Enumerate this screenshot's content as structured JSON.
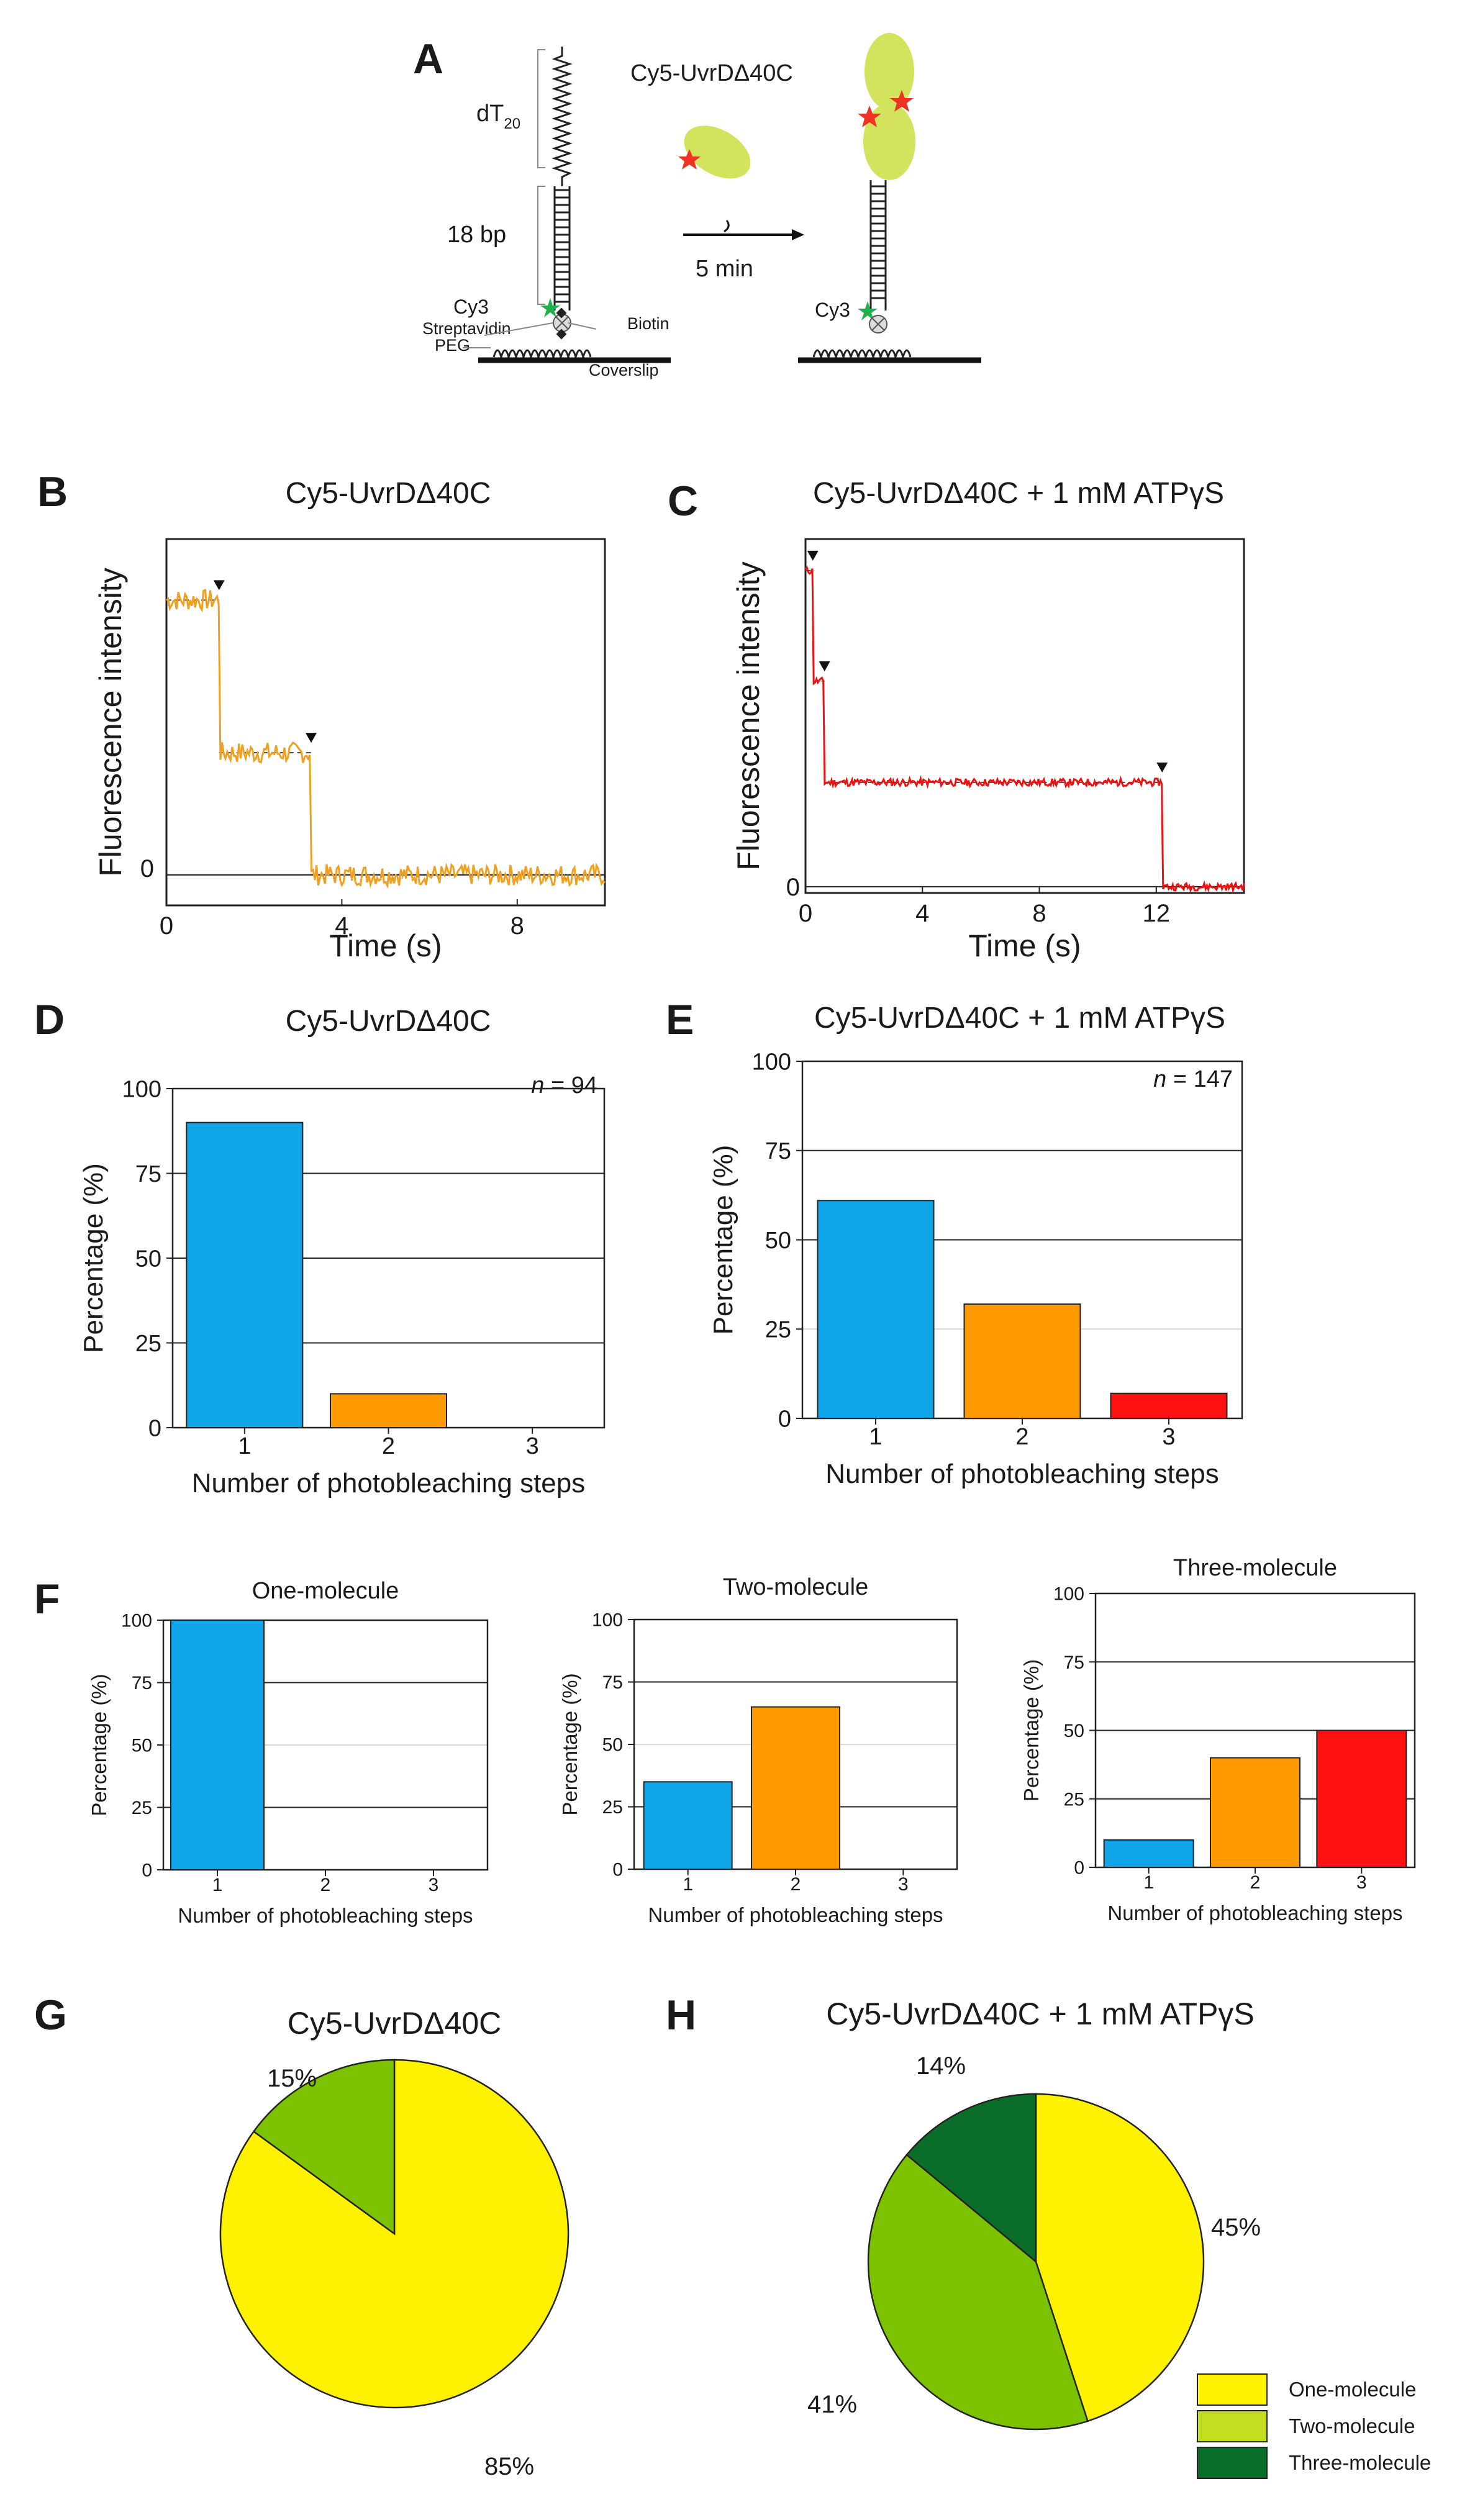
{
  "panels": {
    "A": {
      "letter": "A",
      "protein_label": "Cy5-UvrDΔ40C",
      "dt_label": "dT",
      "dt_sub": "20",
      "bp_label": "18 bp",
      "time_label": "5 min",
      "cy3_label": "Cy3",
      "cy3_label_2": "Cy3",
      "streptavidin_label": "Streptavidin",
      "peg_label": "PEG",
      "biotin_label": "Biotin",
      "coverslip_label": "Coverslip"
    },
    "B": {
      "letter": "B",
      "title": "Cy5-UvrDΔ40C",
      "ylabel": "Fluorescence intensity",
      "xlabel": "Time (s)",
      "zero_label": "0"
    },
    "C": {
      "letter": "C",
      "title": "Cy5-UvrDΔ40C + 1 mM ATPγS",
      "ylabel": "Fluorescence intensity",
      "xlabel": "Time (s)",
      "zero_label": "0"
    },
    "D": {
      "letter": "D",
      "title": "Cy5-UvrDΔ40C",
      "n_label": "n",
      "n_value": " = 94"
    },
    "E": {
      "letter": "E",
      "title": "Cy5-UvrDΔ40C + 1 mM ATPγS",
      "n_label": "n",
      "n_value": " = 147"
    },
    "F": {
      "letter": "F"
    },
    "G": {
      "letter": "G",
      "title": "Cy5-UvrDΔ40C"
    },
    "H": {
      "letter": "H",
      "title": "Cy5-UvrDΔ40C + 1 mM ATPγS"
    }
  },
  "colors": {
    "blue": "#10a4e8",
    "orange": "#ff9900",
    "red": "#ff1111",
    "yellow": "#fff200",
    "light_green": "#7dc200",
    "dark_green": "#0a6e2a",
    "trace_orange": "#f0a020",
    "trace_red": "#ee1111"
  },
  "legend": {
    "items": [
      {
        "label": "One-molecule",
        "color": "#fff200"
      },
      {
        "label": "Two-molecule",
        "color": "#c5dd1f"
      },
      {
        "label": "Three-molecule",
        "color": "#0a6e2a"
      }
    ]
  },
  "chart_data": [
    {
      "id": "B",
      "type": "line",
      "title": "Cy5-UvrDΔ40C",
      "xlabel": "Time (s)",
      "ylabel": "Fluorescence intensity",
      "xlim": [
        0,
        10
      ],
      "ylim": [
        -0.1,
        1.1
      ],
      "xticks": [
        0,
        4,
        8
      ],
      "yticks": [
        0
      ],
      "steps": [
        {
          "t": 1.2,
          "from": 0.9,
          "to": 0.4
        },
        {
          "t": 3.3,
          "from": 0.4,
          "to": 0.0
        }
      ],
      "noise": 0.035,
      "step_times": [
        1.2,
        3.3
      ]
    },
    {
      "id": "C",
      "type": "line",
      "title": "Cy5-UvrDΔ40C + 1 mM ATPγS",
      "xlabel": "Time (s)",
      "ylabel": "Fluorescence intensity",
      "xlim": [
        0,
        15
      ],
      "ylim": [
        -0.02,
        1.1
      ],
      "xticks": [
        0,
        4,
        8,
        12
      ],
      "yticks": [
        0
      ],
      "steps": [
        {
          "t": 0.0,
          "from": 1.0,
          "to": 1.0
        },
        {
          "t": 0.25,
          "from": 1.0,
          "to": 0.65
        },
        {
          "t": 0.65,
          "from": 0.65,
          "to": 0.33
        },
        {
          "t": 12.2,
          "from": 0.33,
          "to": 0.0
        }
      ],
      "noise": 0.012,
      "step_times": [
        0.25,
        0.65,
        12.2
      ]
    },
    {
      "id": "D",
      "type": "bar",
      "categories": [
        "1",
        "2",
        "3"
      ],
      "values": [
        90,
        10,
        0
      ],
      "colors": [
        "#10a4e8",
        "#ff9900",
        "#ff1111"
      ],
      "xlabel": "Number of photobleaching steps",
      "ylabel": "Percentage (%)",
      "ylim": [
        0,
        100
      ],
      "yticks": [
        0,
        25,
        50,
        75,
        100
      ]
    },
    {
      "id": "E",
      "type": "bar",
      "categories": [
        "1",
        "2",
        "3"
      ],
      "values": [
        61,
        32,
        7
      ],
      "colors": [
        "#10a4e8",
        "#ff9900",
        "#ff1111"
      ],
      "xlabel": "Number of photobleaching steps",
      "ylabel": "Percentage (%)",
      "ylim": [
        0,
        100
      ],
      "yticks": [
        0,
        25,
        50,
        75,
        100
      ]
    },
    {
      "id": "F1",
      "type": "bar",
      "title": "One-molecule",
      "categories": [
        "1",
        "2",
        "3"
      ],
      "values": [
        100,
        0,
        0
      ],
      "colors": [
        "#10a4e8",
        "#ff9900",
        "#ff1111"
      ],
      "xlabel": "Number of photobleaching steps",
      "ylabel": "Percentage (%)",
      "ylim": [
        0,
        100
      ],
      "yticks": [
        0,
        25,
        50,
        75,
        100
      ]
    },
    {
      "id": "F2",
      "type": "bar",
      "title": "Two-molecule",
      "categories": [
        "1",
        "2",
        "3"
      ],
      "values": [
        35,
        65,
        0
      ],
      "colors": [
        "#10a4e8",
        "#ff9900",
        "#ff1111"
      ],
      "xlabel": "Number of photobleaching steps",
      "ylabel": "Percentage (%)",
      "ylim": [
        0,
        100
      ],
      "yticks": [
        0,
        25,
        50,
        75,
        100
      ]
    },
    {
      "id": "F3",
      "type": "bar",
      "title": "Three-molecule",
      "categories": [
        "1",
        "2",
        "3"
      ],
      "values": [
        10,
        40,
        50
      ],
      "colors": [
        "#10a4e8",
        "#ff9900",
        "#ff1111"
      ],
      "xlabel": "Number of photobleaching steps",
      "ylabel": "Percentage (%)",
      "ylim": [
        0,
        100
      ],
      "yticks": [
        0,
        25,
        50,
        75,
        100
      ]
    },
    {
      "id": "G",
      "type": "pie",
      "title": "Cy5-UvrDΔ40C",
      "labels": [
        "One-molecule",
        "Two-molecule"
      ],
      "values": [
        85,
        15
      ],
      "value_labels": [
        "85%",
        "15%"
      ],
      "colors": [
        "#fff200",
        "#7dc200"
      ]
    },
    {
      "id": "H",
      "type": "pie",
      "title": "Cy5-UvrDΔ40C + 1 mM ATPγS",
      "labels": [
        "One-molecule",
        "Two-molecule",
        "Three-molecule"
      ],
      "values": [
        45,
        41,
        14
      ],
      "value_labels": [
        "45%",
        "41%",
        "14%"
      ],
      "colors": [
        "#fff200",
        "#7dc200",
        "#0a6e2a"
      ]
    }
  ]
}
